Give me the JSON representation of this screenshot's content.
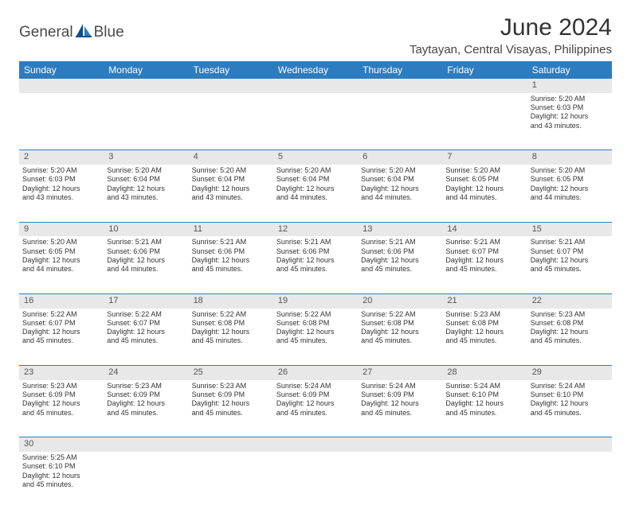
{
  "brand": {
    "name": "GeneralBlue",
    "text1": "General",
    "text2": "Blue"
  },
  "title": "June 2024",
  "location": "Taytayan, Central Visayas, Philippines",
  "colors": {
    "header_bg": "#2d7cc0",
    "header_fg": "#ffffff",
    "daynum_bg": "#e8e8e8",
    "cell_border": "#2d7cc0",
    "text": "#333333",
    "background": "#ffffff"
  },
  "typography": {
    "title_fontsize": 30,
    "location_fontsize": 15,
    "dayheader_fontsize": 12,
    "daynum_fontsize": 11,
    "cell_fontsize": 9
  },
  "day_headers": [
    "Sunday",
    "Monday",
    "Tuesday",
    "Wednesday",
    "Thursday",
    "Friday",
    "Saturday"
  ],
  "weeks": [
    {
      "nums": [
        "",
        "",
        "",
        "",
        "",
        "",
        "1"
      ],
      "cells": [
        null,
        null,
        null,
        null,
        null,
        null,
        {
          "sunrise": "Sunrise: 5:20 AM",
          "sunset": "Sunset: 6:03 PM",
          "day1": "Daylight: 12 hours",
          "day2": "and 43 minutes."
        }
      ]
    },
    {
      "nums": [
        "2",
        "3",
        "4",
        "5",
        "6",
        "7",
        "8"
      ],
      "cells": [
        {
          "sunrise": "Sunrise: 5:20 AM",
          "sunset": "Sunset: 6:03 PM",
          "day1": "Daylight: 12 hours",
          "day2": "and 43 minutes."
        },
        {
          "sunrise": "Sunrise: 5:20 AM",
          "sunset": "Sunset: 6:04 PM",
          "day1": "Daylight: 12 hours",
          "day2": "and 43 minutes."
        },
        {
          "sunrise": "Sunrise: 5:20 AM",
          "sunset": "Sunset: 6:04 PM",
          "day1": "Daylight: 12 hours",
          "day2": "and 43 minutes."
        },
        {
          "sunrise": "Sunrise: 5:20 AM",
          "sunset": "Sunset: 6:04 PM",
          "day1": "Daylight: 12 hours",
          "day2": "and 44 minutes."
        },
        {
          "sunrise": "Sunrise: 5:20 AM",
          "sunset": "Sunset: 6:04 PM",
          "day1": "Daylight: 12 hours",
          "day2": "and 44 minutes."
        },
        {
          "sunrise": "Sunrise: 5:20 AM",
          "sunset": "Sunset: 6:05 PM",
          "day1": "Daylight: 12 hours",
          "day2": "and 44 minutes."
        },
        {
          "sunrise": "Sunrise: 5:20 AM",
          "sunset": "Sunset: 6:05 PM",
          "day1": "Daylight: 12 hours",
          "day2": "and 44 minutes."
        }
      ]
    },
    {
      "nums": [
        "9",
        "10",
        "11",
        "12",
        "13",
        "14",
        "15"
      ],
      "cells": [
        {
          "sunrise": "Sunrise: 5:20 AM",
          "sunset": "Sunset: 6:05 PM",
          "day1": "Daylight: 12 hours",
          "day2": "and 44 minutes."
        },
        {
          "sunrise": "Sunrise: 5:21 AM",
          "sunset": "Sunset: 6:06 PM",
          "day1": "Daylight: 12 hours",
          "day2": "and 44 minutes."
        },
        {
          "sunrise": "Sunrise: 5:21 AM",
          "sunset": "Sunset: 6:06 PM",
          "day1": "Daylight: 12 hours",
          "day2": "and 45 minutes."
        },
        {
          "sunrise": "Sunrise: 5:21 AM",
          "sunset": "Sunset: 6:06 PM",
          "day1": "Daylight: 12 hours",
          "day2": "and 45 minutes."
        },
        {
          "sunrise": "Sunrise: 5:21 AM",
          "sunset": "Sunset: 6:06 PM",
          "day1": "Daylight: 12 hours",
          "day2": "and 45 minutes."
        },
        {
          "sunrise": "Sunrise: 5:21 AM",
          "sunset": "Sunset: 6:07 PM",
          "day1": "Daylight: 12 hours",
          "day2": "and 45 minutes."
        },
        {
          "sunrise": "Sunrise: 5:21 AM",
          "sunset": "Sunset: 6:07 PM",
          "day1": "Daylight: 12 hours",
          "day2": "and 45 minutes."
        }
      ]
    },
    {
      "nums": [
        "16",
        "17",
        "18",
        "19",
        "20",
        "21",
        "22"
      ],
      "cells": [
        {
          "sunrise": "Sunrise: 5:22 AM",
          "sunset": "Sunset: 6:07 PM",
          "day1": "Daylight: 12 hours",
          "day2": "and 45 minutes."
        },
        {
          "sunrise": "Sunrise: 5:22 AM",
          "sunset": "Sunset: 6:07 PM",
          "day1": "Daylight: 12 hours",
          "day2": "and 45 minutes."
        },
        {
          "sunrise": "Sunrise: 5:22 AM",
          "sunset": "Sunset: 6:08 PM",
          "day1": "Daylight: 12 hours",
          "day2": "and 45 minutes."
        },
        {
          "sunrise": "Sunrise: 5:22 AM",
          "sunset": "Sunset: 6:08 PM",
          "day1": "Daylight: 12 hours",
          "day2": "and 45 minutes."
        },
        {
          "sunrise": "Sunrise: 5:22 AM",
          "sunset": "Sunset: 6:08 PM",
          "day1": "Daylight: 12 hours",
          "day2": "and 45 minutes."
        },
        {
          "sunrise": "Sunrise: 5:23 AM",
          "sunset": "Sunset: 6:08 PM",
          "day1": "Daylight: 12 hours",
          "day2": "and 45 minutes."
        },
        {
          "sunrise": "Sunrise: 5:23 AM",
          "sunset": "Sunset: 6:08 PM",
          "day1": "Daylight: 12 hours",
          "day2": "and 45 minutes."
        }
      ]
    },
    {
      "nums": [
        "23",
        "24",
        "25",
        "26",
        "27",
        "28",
        "29"
      ],
      "cells": [
        {
          "sunrise": "Sunrise: 5:23 AM",
          "sunset": "Sunset: 6:09 PM",
          "day1": "Daylight: 12 hours",
          "day2": "and 45 minutes."
        },
        {
          "sunrise": "Sunrise: 5:23 AM",
          "sunset": "Sunset: 6:09 PM",
          "day1": "Daylight: 12 hours",
          "day2": "and 45 minutes."
        },
        {
          "sunrise": "Sunrise: 5:23 AM",
          "sunset": "Sunset: 6:09 PM",
          "day1": "Daylight: 12 hours",
          "day2": "and 45 minutes."
        },
        {
          "sunrise": "Sunrise: 5:24 AM",
          "sunset": "Sunset: 6:09 PM",
          "day1": "Daylight: 12 hours",
          "day2": "and 45 minutes."
        },
        {
          "sunrise": "Sunrise: 5:24 AM",
          "sunset": "Sunset: 6:09 PM",
          "day1": "Daylight: 12 hours",
          "day2": "and 45 minutes."
        },
        {
          "sunrise": "Sunrise: 5:24 AM",
          "sunset": "Sunset: 6:10 PM",
          "day1": "Daylight: 12 hours",
          "day2": "and 45 minutes."
        },
        {
          "sunrise": "Sunrise: 5:24 AM",
          "sunset": "Sunset: 6:10 PM",
          "day1": "Daylight: 12 hours",
          "day2": "and 45 minutes."
        }
      ]
    },
    {
      "nums": [
        "30",
        "",
        "",
        "",
        "",
        "",
        ""
      ],
      "cells": [
        {
          "sunrise": "Sunrise: 5:25 AM",
          "sunset": "Sunset: 6:10 PM",
          "day1": "Daylight: 12 hours",
          "day2": "and 45 minutes."
        },
        null,
        null,
        null,
        null,
        null,
        null
      ]
    }
  ]
}
